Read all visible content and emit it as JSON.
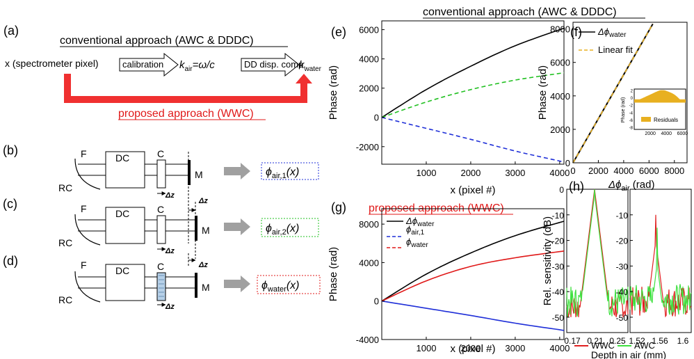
{
  "panel_labels": {
    "a": "(a)",
    "b": "(b)",
    "c": "(c)",
    "d": "(d)",
    "e": "(e)",
    "f": "(f)",
    "g": "(g)",
    "h": "(h)"
  },
  "top_title": "conventional approach (AWC & DDDC)",
  "panel_a": {
    "conv_title": "conventional approach (AWC & DDDC)",
    "x_label": "x (spectrometer pixel)",
    "calibration": "calibration",
    "kair": "k",
    "kair_sub": "air",
    "kair_eq": "=ω/c",
    "dd": "DD disp. comp.",
    "kwater": "k",
    "kwater_sub": "water",
    "proposed": "proposed approach (WWC)"
  },
  "setup": {
    "F": "F",
    "RC": "RC",
    "DC": "DC",
    "C": "C",
    "M": "M",
    "dz": "Δz",
    "phi_air1": "ϕ",
    "phi_air1_sub": "air,1",
    "phi_air2": "ϕ",
    "phi_air2_sub": "air,2",
    "phi_water": "ϕ",
    "phi_water_sub": "water",
    "arg": "(x)"
  },
  "colors": {
    "black": "#000000",
    "green": "#21c021",
    "blue": "#1f2fd8",
    "red": "#e01818",
    "orange": "#e8b020",
    "wwc": "#e02020",
    "awc": "#40e040",
    "arrow": "#f03030",
    "gray": "#a0a0a0"
  },
  "chart_e": {
    "ylabel": "Phase (rad)",
    "xlabel": "x (pixel #)",
    "yticks": [
      "6000",
      "4000",
      "2000",
      "0",
      "-2000"
    ],
    "xticks": [
      "1000",
      "2000",
      "3000",
      "4000"
    ]
  },
  "chart_f": {
    "ylabel": "Phase (rad)",
    "xlabel": "Δϕ",
    "xlabel_sub": "air",
    "xlabel_unit": " (rad)",
    "yticks": [
      "8000",
      "6000",
      "4000",
      "2000",
      "0"
    ],
    "xticks": [
      "0",
      "2000",
      "4000",
      "6000",
      "8000"
    ],
    "legend1": "Δϕ",
    "legend1_sub": "water",
    "legend2": "Linear fit",
    "inset_ylabel": "Phase (rad)",
    "inset_yticks": [
      "2",
      "0",
      "-2",
      "-4",
      "-6",
      "-8"
    ],
    "inset_xticks": [
      "2000",
      "4000",
      "6000"
    ],
    "inset_legend": "Residuals"
  },
  "chart_g": {
    "title": "proposed approach (WWC)",
    "ylabel": "Phase (rad)",
    "xlabel": "x (pixel #)",
    "yticks": [
      "8000",
      "4000",
      "0",
      "-4000"
    ],
    "xticks": [
      "1000",
      "2000",
      "3000",
      "4000"
    ],
    "legend1": "Δϕ",
    "legend1_sub": "water",
    "legend2": "ϕ",
    "legend2_sub": "air,1",
    "legend3": "ϕ",
    "legend3_sub": "water"
  },
  "chart_h": {
    "ylabel": "Rel. sensitivity (dB)",
    "left_yticks": [
      "0",
      "-10",
      "-20",
      "-30",
      "-40",
      "-50"
    ],
    "right_yticks": [
      "-10",
      "-20",
      "-30",
      "-40",
      "-50"
    ],
    "left_xticks": [
      "0.17",
      "0.21",
      "0.25"
    ],
    "right_xticks": [
      "1.52",
      "1.56",
      "1.6"
    ],
    "legend_wwc": "WWC",
    "legend_awc": "AWC",
    "xlabel": "Depth in air (mm)"
  },
  "chart_data": [
    {
      "type": "line",
      "xlim": [
        0,
        4096
      ],
      "ylim": [
        -3200,
        6600
      ],
      "series": [
        {
          "color": "#000000",
          "dash": "none",
          "x": [
            0,
            1000,
            2000,
            3000,
            4096
          ],
          "y": [
            0,
            1900,
            3500,
            4900,
            6100
          ]
        },
        {
          "color": "#21c021",
          "dash": "dashed",
          "x": [
            0,
            1000,
            2000,
            3000,
            4096
          ],
          "y": [
            0,
            1050,
            1900,
            2550,
            3050
          ]
        },
        {
          "color": "#1f2fd8",
          "dash": "dashed",
          "x": [
            0,
            1000,
            2000,
            3000,
            4096
          ],
          "y": [
            0,
            -750,
            -1500,
            -2300,
            -3050
          ]
        }
      ]
    },
    {
      "type": "line",
      "xlim": [
        0,
        9000
      ],
      "ylim": [
        0,
        8400
      ],
      "series": [
        {
          "name": "Δϕwater",
          "color": "#000000",
          "x": [
            0,
            6300
          ],
          "y": [
            0,
            8300
          ]
        },
        {
          "name": "Linear fit",
          "color": "#e8b020",
          "x": [
            0,
            6300
          ],
          "y": [
            0,
            8300
          ]
        }
      ]
    },
    {
      "type": "area",
      "series": [
        {
          "name": "Residuals",
          "color": "#e8b020",
          "x": [
            0,
            1000,
            2000,
            3000,
            3500,
            4000,
            5000,
            6000
          ],
          "y": [
            -1,
            0,
            1,
            2,
            2.2,
            2,
            1,
            -1
          ]
        }
      ]
    },
    {
      "type": "line",
      "xlim": [
        0,
        4096
      ],
      "ylim": [
        -4000,
        9600
      ],
      "series": [
        {
          "name": "Δϕwater",
          "color": "#000000",
          "x": [
            0,
            1000,
            2000,
            3000,
            4096
          ],
          "y": [
            0,
            2800,
            5000,
            6800,
            8300
          ]
        },
        {
          "name": "ϕair,1",
          "color": "#1f2fd8",
          "x": [
            0,
            1000,
            2000,
            3000,
            4096
          ],
          "y": [
            0,
            -750,
            -1500,
            -2300,
            -3050
          ]
        },
        {
          "name": "ϕwater",
          "color": "#e01818",
          "x": [
            0,
            1000,
            2000,
            3000,
            4096
          ],
          "y": [
            0,
            2100,
            3600,
            4500,
            5200
          ]
        }
      ]
    }
  ]
}
